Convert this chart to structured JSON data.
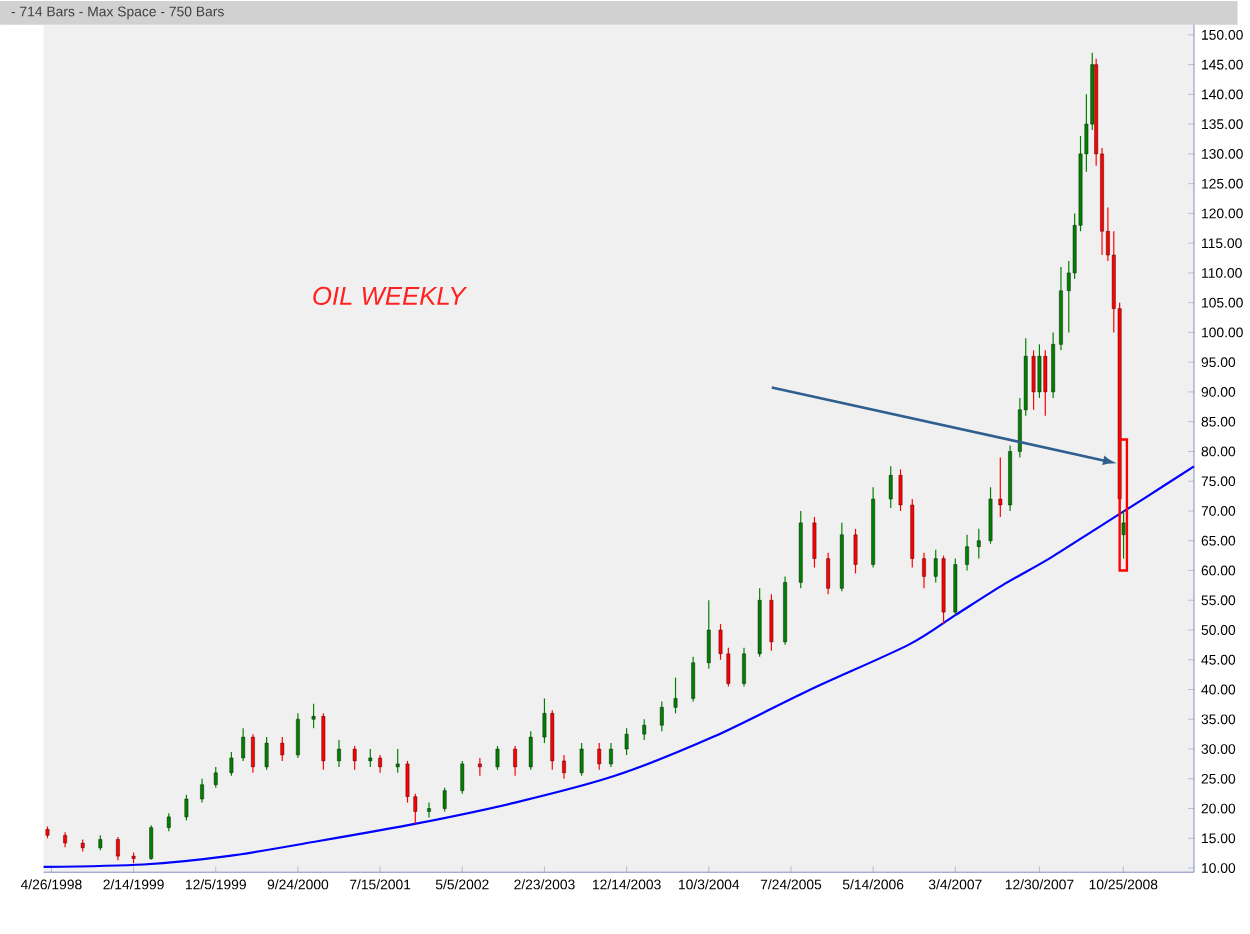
{
  "chart_data": {
    "type": "candlestick",
    "title": "OIL WEEKLY",
    "annotations": [
      "- 714 Bars -  Max Space - 750 Bars"
    ],
    "xlim": [
      "1998-03-29",
      "2009-07-05"
    ],
    "xticks": [
      {
        "value": "1998-04-26",
        "label": "4/26/1998"
      },
      {
        "value": "1999-02-14",
        "label": "2/14/1999"
      },
      {
        "value": "1999-12-05",
        "label": "12/5/1999"
      },
      {
        "value": "2000-09-24",
        "label": "9/24/2000"
      },
      {
        "value": "2001-07-15",
        "label": "7/15/2001"
      },
      {
        "value": "2002-05-05",
        "label": "5/5/2002"
      },
      {
        "value": "2003-02-23",
        "label": "2/23/2003"
      },
      {
        "value": "2003-12-14",
        "label": "12/14/2003"
      },
      {
        "value": "2004-10-03",
        "label": "10/3/2004"
      },
      {
        "value": "2005-07-24",
        "label": "7/24/2005"
      },
      {
        "value": "2006-05-14",
        "label": "5/14/2006"
      },
      {
        "value": "2007-03-04",
        "label": "3/4/2007"
      },
      {
        "value": "2007-12-30",
        "label": "12/30/2007"
      },
      {
        "value": "2008-10-25",
        "label": "10/25/2008"
      }
    ],
    "ylim": [
      9.3,
      151.7
    ],
    "yticks": [
      {
        "value": 10,
        "label": "10.00"
      },
      {
        "value": 15,
        "label": "15.00"
      },
      {
        "value": 20,
        "label": "20.00"
      },
      {
        "value": 25,
        "label": "25.00"
      },
      {
        "value": 30,
        "label": "30.00"
      },
      {
        "value": 35,
        "label": "35.00"
      },
      {
        "value": 40,
        "label": "40.00"
      },
      {
        "value": 45,
        "label": "45.00"
      },
      {
        "value": 50,
        "label": "50.00"
      },
      {
        "value": 55,
        "label": "55.00"
      },
      {
        "value": 60,
        "label": "60.00"
      },
      {
        "value": 65,
        "label": "65.00"
      },
      {
        "value": 70,
        "label": "70.00"
      },
      {
        "value": 75,
        "label": "75.00"
      },
      {
        "value": 80,
        "label": "80.00"
      },
      {
        "value": 85,
        "label": "85.00"
      },
      {
        "value": 90,
        "label": "90.00"
      },
      {
        "value": 95,
        "label": "95.00"
      },
      {
        "value": 100,
        "label": "100.00"
      },
      {
        "value": 105,
        "label": "105.00"
      },
      {
        "value": 110,
        "label": "110.00"
      },
      {
        "value": 115,
        "label": "115.00"
      },
      {
        "value": 120,
        "label": "120.00"
      },
      {
        "value": 125,
        "label": "125.00"
      },
      {
        "value": 130,
        "label": "130.00"
      },
      {
        "value": 135,
        "label": "135.00"
      },
      {
        "value": 140,
        "label": "140.00"
      },
      {
        "value": 145,
        "label": "145.00"
      },
      {
        "value": 150,
        "label": "150.00"
      }
    ],
    "series": [
      {
        "x": [
          "1998-04-12",
          "1998-06-14",
          "1998-08-16",
          "1998-10-18",
          "1998-12-20",
          "1999-02-14",
          "1999-04-18",
          "1999-06-20",
          "1999-08-22",
          "1999-10-17",
          "1999-12-05",
          "2000-01-30",
          "2000-03-12",
          "2000-04-16",
          "2000-06-04",
          "2000-07-30",
          "2000-09-24",
          "2000-11-19",
          "2000-12-24",
          "2001-02-18",
          "2001-04-15",
          "2001-06-10",
          "2001-07-15",
          "2001-09-16",
          "2001-10-21",
          "2001-11-18",
          "2002-01-06",
          "2002-03-03",
          "2002-05-05",
          "2002-07-07",
          "2002-09-08",
          "2002-11-10",
          "2003-01-05",
          "2003-02-23",
          "2003-03-23",
          "2003-05-04",
          "2003-07-06",
          "2003-09-07",
          "2003-10-19",
          "2003-12-14",
          "2004-02-15",
          "2004-04-18",
          "2004-06-06",
          "2004-08-08",
          "2004-10-03",
          "2004-11-14",
          "2004-12-12",
          "2005-02-06",
          "2005-04-03",
          "2005-05-15",
          "2005-07-03",
          "2005-08-28",
          "2005-10-16",
          "2005-12-04",
          "2006-01-22",
          "2006-03-12",
          "2006-05-14",
          "2006-07-16",
          "2006-08-20",
          "2006-10-01",
          "2006-11-12",
          "2006-12-24",
          "2007-01-21",
          "2007-03-04",
          "2007-04-15",
          "2007-05-27",
          "2007-07-08",
          "2007-08-12",
          "2007-09-16",
          "2007-10-21",
          "2007-11-11",
          "2007-12-09",
          "2007-12-30",
          "2008-01-20",
          "2008-02-17",
          "2008-03-16",
          "2008-04-13",
          "2008-05-04",
          "2008-05-25",
          "2008-06-15",
          "2008-07-06",
          "2008-07-20",
          "2008-08-10",
          "2008-08-31",
          "2008-09-21",
          "2008-10-12",
          "2008-10-26"
        ],
        "ohlc": [
          [
            16.5,
            17,
            15,
            15.5
          ],
          [
            15.5,
            16,
            13.5,
            14.2
          ],
          [
            14.2,
            14.8,
            12.8,
            13.4
          ],
          [
            13.4,
            15.5,
            13,
            14.8
          ],
          [
            14.8,
            15.2,
            11.3,
            12
          ],
          [
            12,
            12.6,
            10.8,
            11.6
          ],
          [
            11.6,
            17.2,
            11.4,
            16.8
          ],
          [
            16.8,
            19.2,
            16.2,
            18.6
          ],
          [
            18.6,
            22.3,
            18,
            21.6
          ],
          [
            21.6,
            25,
            21,
            24
          ],
          [
            24,
            27,
            23.5,
            26
          ],
          [
            26,
            29.5,
            25.5,
            28.5
          ],
          [
            28.5,
            33.5,
            28,
            32
          ],
          [
            32,
            32.5,
            26,
            27
          ],
          [
            27,
            32,
            26.5,
            31
          ],
          [
            31,
            32,
            28,
            29
          ],
          [
            29,
            36,
            28.5,
            35
          ],
          [
            35,
            37.6,
            33.5,
            35.5
          ],
          [
            35.5,
            36,
            26.5,
            28
          ],
          [
            28,
            31.5,
            27,
            30
          ],
          [
            30,
            30.5,
            26.5,
            28
          ],
          [
            28,
            30,
            27,
            28.5
          ],
          [
            28.5,
            29,
            26,
            27
          ],
          [
            27,
            30,
            26,
            27.5
          ],
          [
            27.5,
            28,
            21,
            22
          ],
          [
            22,
            22.5,
            17.5,
            19.5
          ],
          [
            19.5,
            21,
            18.5,
            20
          ],
          [
            20,
            23.5,
            19.5,
            23
          ],
          [
            23,
            28,
            22.5,
            27.5
          ],
          [
            27.5,
            28.5,
            25.5,
            27
          ],
          [
            27,
            30.5,
            26.5,
            30
          ],
          [
            30,
            30.5,
            25.5,
            27
          ],
          [
            27,
            33,
            26.5,
            32
          ],
          [
            32,
            38.5,
            31,
            36
          ],
          [
            36,
            36.5,
            26.5,
            28
          ],
          [
            28,
            29,
            25,
            26
          ],
          [
            26,
            31,
            25.5,
            30
          ],
          [
            30,
            31,
            26.5,
            27.5
          ],
          [
            27.5,
            31,
            27,
            30
          ],
          [
            30,
            33.5,
            29,
            32.5
          ],
          [
            32.5,
            35,
            31.5,
            34
          ],
          [
            34,
            38,
            33,
            37
          ],
          [
            37,
            42,
            36,
            38.5
          ],
          [
            38.5,
            45.5,
            38,
            44.5
          ],
          [
            44.5,
            55,
            43.5,
            50
          ],
          [
            50,
            51,
            45,
            46
          ],
          [
            46,
            47,
            40.5,
            41
          ],
          [
            41,
            47,
            40.5,
            46
          ],
          [
            46,
            57,
            45.5,
            55
          ],
          [
            55,
            56,
            46.5,
            48
          ],
          [
            48,
            59,
            47.5,
            58
          ],
          [
            58,
            70,
            57,
            68
          ],
          [
            68,
            69,
            60.5,
            62
          ],
          [
            62,
            63,
            56,
            57
          ],
          [
            57,
            68,
            56.5,
            66
          ],
          [
            66,
            67,
            59.5,
            61
          ],
          [
            61,
            74,
            60.5,
            72
          ],
          [
            72,
            77.5,
            70.5,
            76
          ],
          [
            76,
            77,
            70,
            71
          ],
          [
            71,
            72,
            60.5,
            62
          ],
          [
            62,
            63,
            57,
            59
          ],
          [
            59,
            63.5,
            58,
            62
          ],
          [
            62,
            62.5,
            51,
            53
          ],
          [
            53,
            62,
            52.5,
            61
          ],
          [
            61,
            66,
            60,
            64
          ],
          [
            64,
            67,
            62,
            65
          ],
          [
            65,
            74,
            64.5,
            72
          ],
          [
            72,
            79,
            69,
            71
          ],
          [
            71,
            81,
            70,
            80
          ],
          [
            80,
            89,
            79,
            87
          ],
          [
            87,
            99,
            86,
            96
          ],
          [
            96,
            97,
            87,
            90
          ],
          [
            90,
            98,
            89,
            96
          ],
          [
            96,
            97,
            86,
            90
          ],
          [
            90,
            100,
            89,
            98
          ],
          [
            98,
            111,
            97,
            107
          ],
          [
            107,
            112,
            100,
            110
          ],
          [
            110,
            120,
            109,
            118
          ],
          [
            118,
            133,
            117,
            130
          ],
          [
            130,
            140,
            127,
            135
          ],
          [
            135,
            147,
            134,
            145
          ],
          [
            145,
            146,
            128,
            130
          ],
          [
            130,
            131,
            113,
            117
          ],
          [
            117,
            121,
            112,
            113
          ],
          [
            113,
            117,
            100,
            104
          ],
          [
            104,
            105,
            69,
            72
          ],
          [
            66,
            70,
            62,
            68
          ]
        ],
        "colors": [
          "#ff0000",
          "#ff0000",
          "#ff0000",
          "#008000",
          "#ff0000",
          "#ff0000",
          "#008000",
          "#008000",
          "#008000",
          "#008000",
          "#008000",
          "#008000",
          "#008000",
          "#ff0000",
          "#008000",
          "#ff0000",
          "#008000",
          "#008000",
          "#ff0000",
          "#008000",
          "#ff0000",
          "#008000",
          "#ff0000",
          "#008000",
          "#ff0000",
          "#ff0000",
          "#008000",
          "#008000",
          "#008000",
          "#ff0000",
          "#008000",
          "#ff0000",
          "#008000",
          "#008000",
          "#ff0000",
          "#ff0000",
          "#008000",
          "#ff0000",
          "#008000",
          "#008000",
          "#008000",
          "#008000",
          "#008000",
          "#008000",
          "#008000",
          "#ff0000",
          "#ff0000",
          "#008000",
          "#008000",
          "#ff0000",
          "#008000",
          "#008000",
          "#ff0000",
          "#ff0000",
          "#008000",
          "#ff0000",
          "#008000",
          "#008000",
          "#ff0000",
          "#ff0000",
          "#ff0000",
          "#008000",
          "#ff0000",
          "#008000",
          "#008000",
          "#008000",
          "#008000",
          "#ff0000",
          "#008000",
          "#008000",
          "#008000",
          "#ff0000",
          "#008000",
          "#ff0000",
          "#008000",
          "#008000",
          "#008000",
          "#008000",
          "#008000",
          "#008000",
          "#008000",
          "#ff0000",
          "#ff0000",
          "#ff0000",
          "#ff0000",
          "#ff0000",
          "#008000"
        ]
      },
      {
        "type": "line",
        "color": "#0000ff",
        "x": [
          "1998-03-29",
          "1999-03-21",
          "2000-01-16",
          "2000-12-03",
          "2001-11-25",
          "2002-11-10",
          "2003-11-02",
          "2004-10-17",
          "2005-10-02",
          "2006-09-17",
          "2007-03-04",
          "2007-08-19",
          "2008-02-03",
          "2008-07-20",
          "2009-01-04",
          "2009-07-05"
        ],
        "values": [
          10.2,
          10.6,
          12,
          14.5,
          17.5,
          21,
          25.5,
          32,
          40,
          47.5,
          52.5,
          57.5,
          62,
          67,
          72,
          77.5
        ]
      }
    ]
  }
}
